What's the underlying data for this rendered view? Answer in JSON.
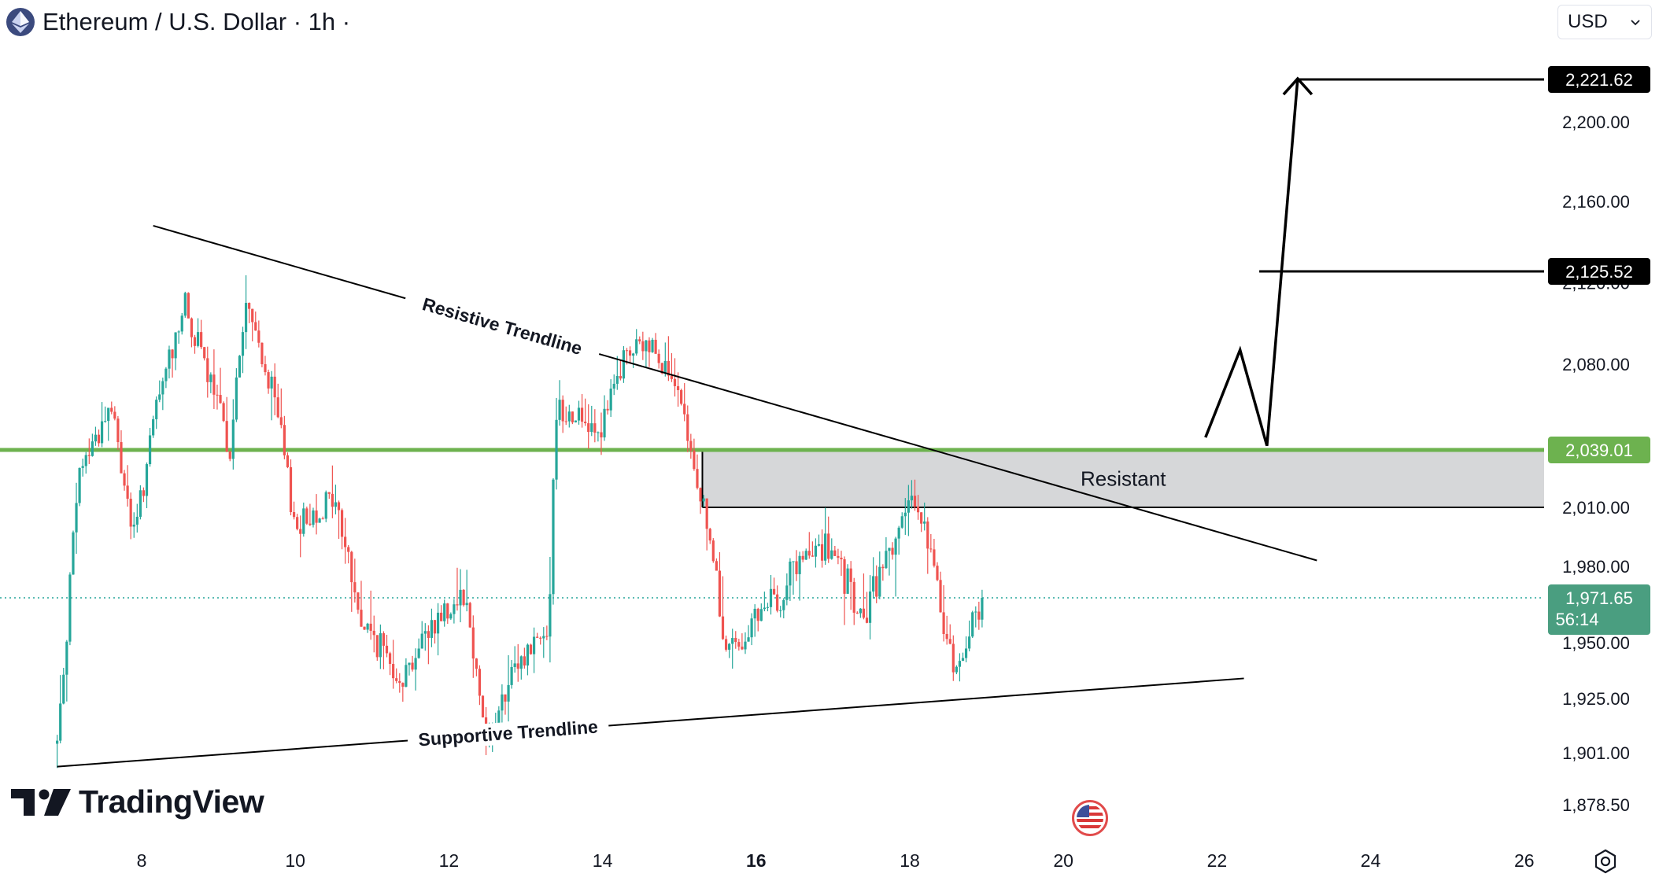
{
  "header": {
    "title": "Ethereum / U.S. Dollar · 1h ·",
    "currency": "USD"
  },
  "brand": {
    "logo_text": "TradingView"
  },
  "colors": {
    "up": "#26a69a",
    "down": "#ef5350",
    "resistance_line": "#6db24f",
    "zone_fill": "#d6d7d9",
    "last_price_bg": "#4a9e80",
    "label_bg": "#000000"
  },
  "chart_data": {
    "type": "candlestick",
    "symbol": "ETHUSD",
    "interval": "1h",
    "x_ticks": [
      {
        "day": 8,
        "label": "8"
      },
      {
        "day": 10,
        "label": "10"
      },
      {
        "day": 12,
        "label": "12"
      },
      {
        "day": 14,
        "label": "14"
      },
      {
        "day": 16,
        "label": "16",
        "bold": true
      },
      {
        "day": 18,
        "label": "18"
      },
      {
        "day": 20,
        "label": "20"
      },
      {
        "day": 22,
        "label": "22"
      },
      {
        "day": 24,
        "label": "24"
      },
      {
        "day": 26,
        "label": "26"
      }
    ],
    "y_ticks": [
      {
        "value": 2200,
        "label": "2,200.00"
      },
      {
        "value": 2160,
        "label": "2,160.00"
      },
      {
        "value": 2080,
        "label": "2,080.00"
      },
      {
        "value": 2010,
        "label": "2,010.00"
      },
      {
        "value": 1950,
        "label": "1,950.00"
      },
      {
        "value": 1925,
        "label": "1,925.00"
      },
      {
        "value": 1901,
        "label": "1,901.00"
      },
      {
        "value": 1878.5,
        "label": "1,878.50"
      }
    ],
    "price_anchors": [
      [
        2221.62,
        2221.62
      ],
      [
        2200,
        2200
      ],
      [
        2160,
        2160
      ],
      [
        2125.52,
        2125.52
      ],
      [
        2080,
        2080
      ],
      [
        2039.01,
        2039.01
      ],
      [
        2010,
        2010
      ],
      [
        1980,
        1980
      ],
      [
        1971.65,
        1971.65
      ],
      [
        1950,
        1950
      ],
      [
        1925,
        1925
      ],
      [
        1901,
        1901
      ],
      [
        1878.5,
        1878.5
      ]
    ],
    "close_path": [
      {
        "day": 6.9,
        "price": 1905
      },
      {
        "day": 7.2,
        "price": 2030
      },
      {
        "day": 7.6,
        "price": 2060
      },
      {
        "day": 7.9,
        "price": 1995
      },
      {
        "day": 8.2,
        "price": 2060
      },
      {
        "day": 8.55,
        "price": 2110
      },
      {
        "day": 8.9,
        "price": 2070
      },
      {
        "day": 9.15,
        "price": 2040
      },
      {
        "day": 9.35,
        "price": 2110
      },
      {
        "day": 9.75,
        "price": 2060
      },
      {
        "day": 10.0,
        "price": 2000
      },
      {
        "day": 10.5,
        "price": 2015
      },
      {
        "day": 10.85,
        "price": 1960
      },
      {
        "day": 11.4,
        "price": 1935
      },
      {
        "day": 11.8,
        "price": 1960
      },
      {
        "day": 12.2,
        "price": 1975
      },
      {
        "day": 12.5,
        "price": 1905
      },
      {
        "day": 12.9,
        "price": 1940
      },
      {
        "day": 13.3,
        "price": 1960
      },
      {
        "day": 13.4,
        "price": 2060
      },
      {
        "day": 14.0,
        "price": 2050
      },
      {
        "day": 14.3,
        "price": 2085
      },
      {
        "day": 14.7,
        "price": 2090
      },
      {
        "day": 15.0,
        "price": 2060
      },
      {
        "day": 15.35,
        "price": 2005
      },
      {
        "day": 15.6,
        "price": 1945
      },
      {
        "day": 16.0,
        "price": 1960
      },
      {
        "day": 16.5,
        "price": 1980
      },
      {
        "day": 16.9,
        "price": 1990
      },
      {
        "day": 17.4,
        "price": 1960
      },
      {
        "day": 17.8,
        "price": 1995
      },
      {
        "day": 18.1,
        "price": 2015
      },
      {
        "day": 18.3,
        "price": 1980
      },
      {
        "day": 18.6,
        "price": 1935
      },
      {
        "day": 18.75,
        "price": 1955
      },
      {
        "day": 18.98,
        "price": 1971.65
      }
    ],
    "last_price": {
      "value": 1971.65,
      "label": "1,971.65",
      "countdown": "56:14"
    },
    "horizontal_levels": [
      {
        "value": 2221.62,
        "label": "2,221.62"
      },
      {
        "value": 2125.52,
        "label": "2,125.52"
      },
      {
        "value": 2039.01,
        "label": "2,039.01"
      }
    ],
    "resistance_zone": {
      "top": 2039.01,
      "bottom": 2010,
      "from_day": 15.3,
      "label": "Resistant"
    },
    "trendlines": [
      {
        "name": "Resistive Trendline",
        "label": "Resistive Trendline",
        "from": {
          "day": 8.15,
          "price": 2148
        },
        "to": {
          "day": 23.3,
          "price": 1983
        }
      },
      {
        "name": "Supportive Trendline",
        "label": "Supportive Trendline",
        "from": {
          "day": 6.9,
          "price": 1895
        },
        "to": {
          "day": 22.35,
          "price": 1934
        }
      }
    ],
    "projection_path": [
      {
        "day": 21.85,
        "price": 2045
      },
      {
        "day": 22.3,
        "price": 2087
      },
      {
        "day": 22.65,
        "price": 2041
      },
      {
        "day": 23.05,
        "price": 2222
      }
    ]
  }
}
